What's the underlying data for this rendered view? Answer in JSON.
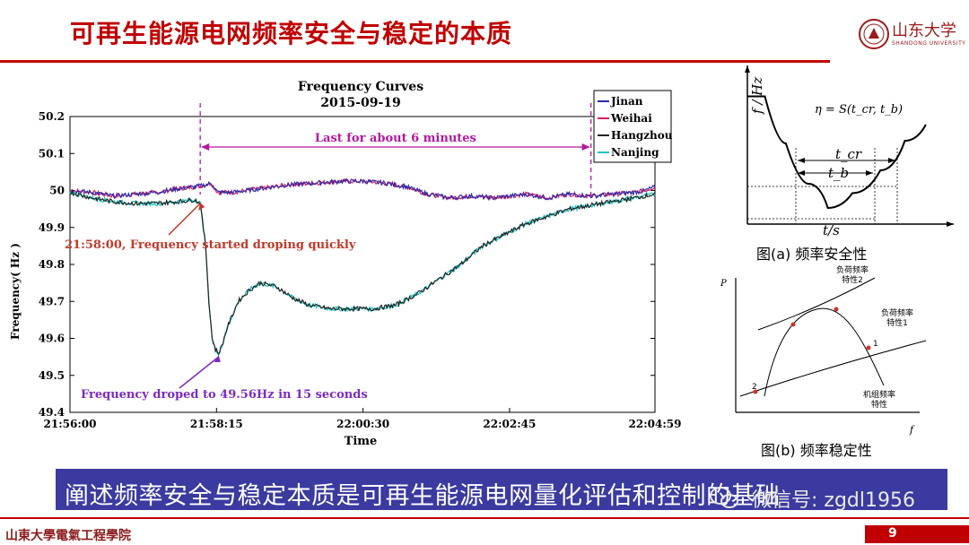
{
  "slide": {
    "title": "可再生能源电网频率安全与稳定的本质",
    "logo_text": "山东大学",
    "logo_subtext": "SHANDONG UNIVERSITY",
    "banner_text": "阐述频率安全与稳定本质是可再生能源电网量化评估和控制的基础",
    "watermark": "微信号: zgdl1956",
    "footer_text": "山東大學電氣工程學院",
    "page_number": "9"
  },
  "chart_data": [
    {
      "type": "line",
      "title": "Frequency Curves",
      "subtitle": "2015-09-19",
      "xlabel": "Time",
      "ylabel": "Frequency( Hz )",
      "x_ticks": [
        "21:56:00",
        "21:58:15",
        "22:00:30",
        "22:02:45",
        "22:04:59"
      ],
      "x_tick_seconds": [
        0,
        135,
        270,
        405,
        539
      ],
      "xlim": [
        0,
        539
      ],
      "ylim": [
        49.4,
        50.2
      ],
      "y_ticks": [
        50.2,
        50.1,
        50,
        49.9,
        49.8,
        49.7,
        49.6,
        49.5,
        49.4
      ],
      "y_tick_labels": [
        "50.2",
        "50.1",
        "50",
        "49.9",
        "49.8",
        "49.7",
        "49.6",
        "49.5",
        "49.4"
      ],
      "legend_position": "top-right",
      "legend": [
        "Jinan",
        "Weihai",
        "Hangzhou",
        "Nanjing"
      ],
      "colors": {
        "Jinan": "#2a2aa8",
        "Weihai": "#d81b60",
        "Hangzhou": "#222222",
        "Nanjing": "#17c3c3",
        "accent": "#b5179e",
        "annot1": "#c0392b",
        "annot2": "#7b2cbf"
      },
      "series": [
        {
          "name": "Jinan",
          "x": [
            0,
            20,
            40,
            60,
            80,
            100,
            115,
            125,
            130,
            136,
            150,
            175,
            200,
            225,
            250,
            270,
            290,
            310,
            330,
            350,
            370,
            390,
            405,
            420,
            440,
            460,
            480,
            500,
            520,
            530,
            539
          ],
          "y": [
            50.0,
            49.995,
            49.985,
            49.99,
            49.995,
            50.005,
            50.01,
            50.015,
            50.02,
            49.995,
            49.995,
            50.005,
            50.015,
            50.02,
            50.025,
            50.025,
            50.02,
            50.01,
            49.99,
            49.98,
            49.985,
            49.98,
            49.985,
            49.99,
            49.98,
            49.99,
            49.985,
            49.99,
            49.995,
            50.0,
            50.01
          ]
        },
        {
          "name": "Weihai",
          "x": [
            0,
            20,
            40,
            60,
            80,
            100,
            115,
            125,
            130,
            136,
            150,
            175,
            200,
            225,
            250,
            270,
            290,
            310,
            330,
            350,
            370,
            390,
            405,
            420,
            440,
            460,
            480,
            500,
            520,
            530,
            539
          ],
          "y": [
            50.0,
            49.995,
            49.985,
            49.99,
            49.995,
            50.005,
            50.01,
            50.015,
            50.02,
            49.995,
            49.995,
            50.005,
            50.015,
            50.02,
            50.025,
            50.025,
            50.02,
            50.01,
            49.99,
            49.98,
            49.985,
            49.98,
            49.985,
            49.99,
            49.98,
            49.99,
            49.985,
            49.99,
            49.995,
            50.0,
            50.01
          ]
        },
        {
          "name": "Hangzhou",
          "x": [
            0,
            20,
            40,
            60,
            80,
            100,
            115,
            120,
            125,
            128,
            131,
            134,
            137,
            140,
            145,
            155,
            165,
            175,
            190,
            205,
            220,
            240,
            260,
            280,
            300,
            320,
            340,
            360,
            380,
            400,
            420,
            440,
            460,
            480,
            500,
            520,
            539
          ],
          "y": [
            49.995,
            49.98,
            49.97,
            49.965,
            49.965,
            49.97,
            49.975,
            49.965,
            49.85,
            49.7,
            49.6,
            49.57,
            49.56,
            49.58,
            49.63,
            49.7,
            49.73,
            49.75,
            49.74,
            49.71,
            49.69,
            49.68,
            49.68,
            49.68,
            49.69,
            49.72,
            49.76,
            49.8,
            49.85,
            49.88,
            49.91,
            49.93,
            49.95,
            49.96,
            49.97,
            49.98,
            49.99
          ]
        },
        {
          "name": "Nanjing",
          "x": [
            0,
            20,
            40,
            60,
            80,
            100,
            115,
            120,
            125,
            128,
            131,
            134,
            137,
            140,
            145,
            155,
            165,
            175,
            190,
            205,
            220,
            240,
            260,
            280,
            300,
            320,
            340,
            360,
            380,
            400,
            420,
            440,
            460,
            480,
            500,
            520,
            539
          ],
          "y": [
            49.995,
            49.98,
            49.97,
            49.965,
            49.965,
            49.97,
            49.975,
            49.965,
            49.85,
            49.7,
            49.6,
            49.57,
            49.56,
            49.58,
            49.63,
            49.7,
            49.73,
            49.75,
            49.74,
            49.71,
            49.69,
            49.68,
            49.68,
            49.68,
            49.69,
            49.72,
            49.76,
            49.8,
            49.85,
            49.88,
            49.91,
            49.93,
            49.95,
            49.96,
            49.97,
            49.98,
            49.99
          ]
        }
      ],
      "annotations": [
        {
          "text": "Last for about 6 minutes",
          "x_start": 120,
          "x_end": 480
        },
        {
          "text": "21:58:00, Frequency started droping quickly",
          "x": 120,
          "y": 49.97
        },
        {
          "text": "Frequency droped to 49.56Hz in 15 seconds",
          "x": 137,
          "y": 49.56
        }
      ]
    },
    {
      "type": "line",
      "title": "",
      "caption": "图(a) 频率安全性",
      "xlabel": "t/s",
      "ylabel": "f / Hz",
      "formula": "η = S(t_cr, t_b)",
      "interval_labels": [
        "t_cr",
        "t_b"
      ],
      "series": [
        {
          "x": [
            0,
            1,
            2.2,
            3.5,
            4.6,
            6.0,
            7.6,
            9.0,
            10.2
          ],
          "y": [
            9.5,
            9.5,
            6,
            3,
            1.2,
            2.3,
            4.0,
            6.2,
            7.4
          ]
        }
      ]
    },
    {
      "type": "line",
      "title": "",
      "caption": "图(b) 频率稳定性",
      "xlabel": "f",
      "ylabel": "P",
      "curve_labels": [
        "负荷频率\n特性2",
        "负荷频率\n特性1",
        "机组频率\n特性"
      ],
      "point_labels": [
        "1",
        "2"
      ]
    }
  ]
}
